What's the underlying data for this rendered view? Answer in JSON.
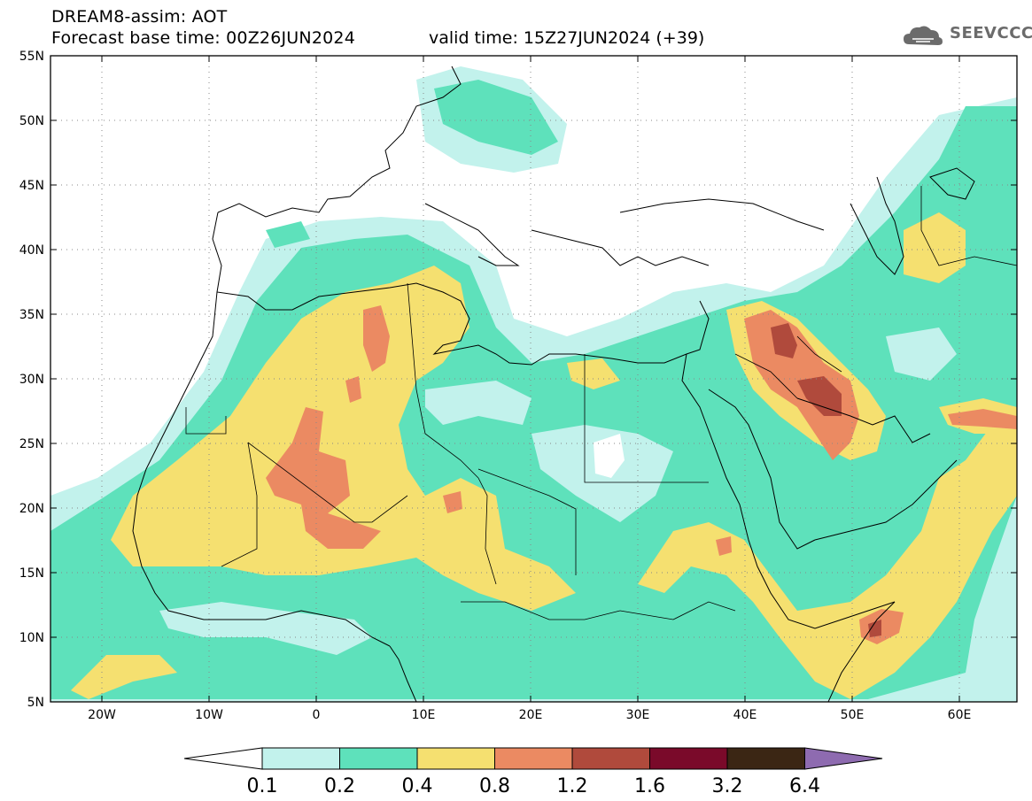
{
  "header": {
    "title": "DREAM8-assim: AOT",
    "base_time": "Forecast base time: 00Z26JUN2024",
    "valid_time": "valid time: 15Z27JUN2024 (+39)",
    "logo_text": "SEEVCCC",
    "logo_icon": "cloud-logo-icon"
  },
  "map": {
    "lon_range": [
      -25,
      65
    ],
    "lat_range": [
      5,
      55
    ],
    "lat_ticks": [
      "55N",
      "50N",
      "45N",
      "40N",
      "35N",
      "30N",
      "25N",
      "20N",
      "15N",
      "10N",
      "5N"
    ],
    "lon_ticks": [
      "20W",
      "10W",
      "0",
      "10E",
      "20E",
      "30E",
      "40E",
      "50E",
      "60E"
    ],
    "grid": "dotted"
  },
  "colorbar": {
    "labels": [
      "0.1",
      "0.2",
      "0.4",
      "0.8",
      "1.2",
      "1.6",
      "3.2",
      "6.4"
    ],
    "colors": [
      "#c2f2ec",
      "#5ee1bb",
      "#f5e070",
      "#eb8a62",
      "#b04a3c",
      "#7a0a2a",
      "#3b2614",
      "#8e6bb0"
    ],
    "under_color": "#ffffff"
  }
}
